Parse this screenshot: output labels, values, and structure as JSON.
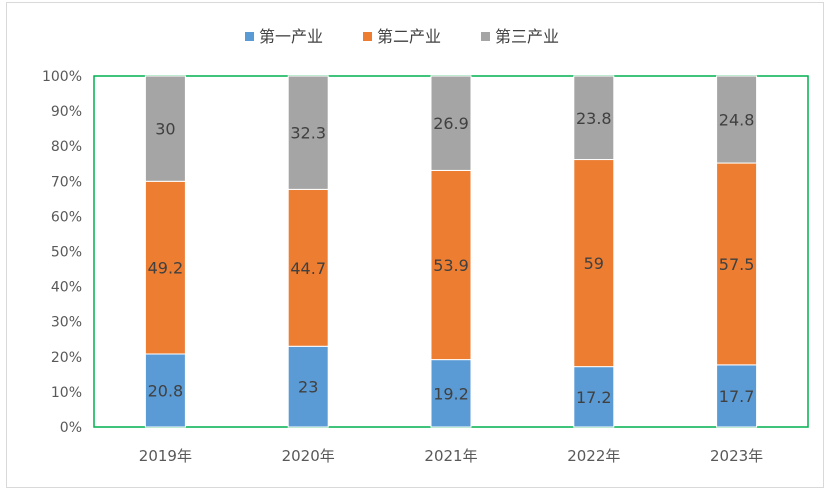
{
  "chart_data": {
    "type": "bar",
    "stacked": true,
    "percent_stacked": true,
    "categories": [
      "2019年",
      "2020年",
      "2021年",
      "2022年",
      "2023年"
    ],
    "series": [
      {
        "name": "第一产业",
        "color": "#5b9bd5",
        "values": [
          20.8,
          23,
          19.2,
          17.2,
          17.7
        ]
      },
      {
        "name": "第二产业",
        "color": "#ed7d31",
        "values": [
          49.2,
          44.7,
          53.9,
          59,
          57.5
        ]
      },
      {
        "name": "第三产业",
        "color": "#a5a5a5",
        "values": [
          30,
          32.3,
          26.9,
          23.8,
          24.8
        ]
      }
    ],
    "ylim": [
      0,
      100
    ],
    "yticks": [
      "0%",
      "10%",
      "20%",
      "30%",
      "40%",
      "50%",
      "60%",
      "70%",
      "80%",
      "90%",
      "100%"
    ],
    "grid": false,
    "legend_position": "top",
    "plot_border_color": "#00b050",
    "data_label_color": "#404040"
  }
}
